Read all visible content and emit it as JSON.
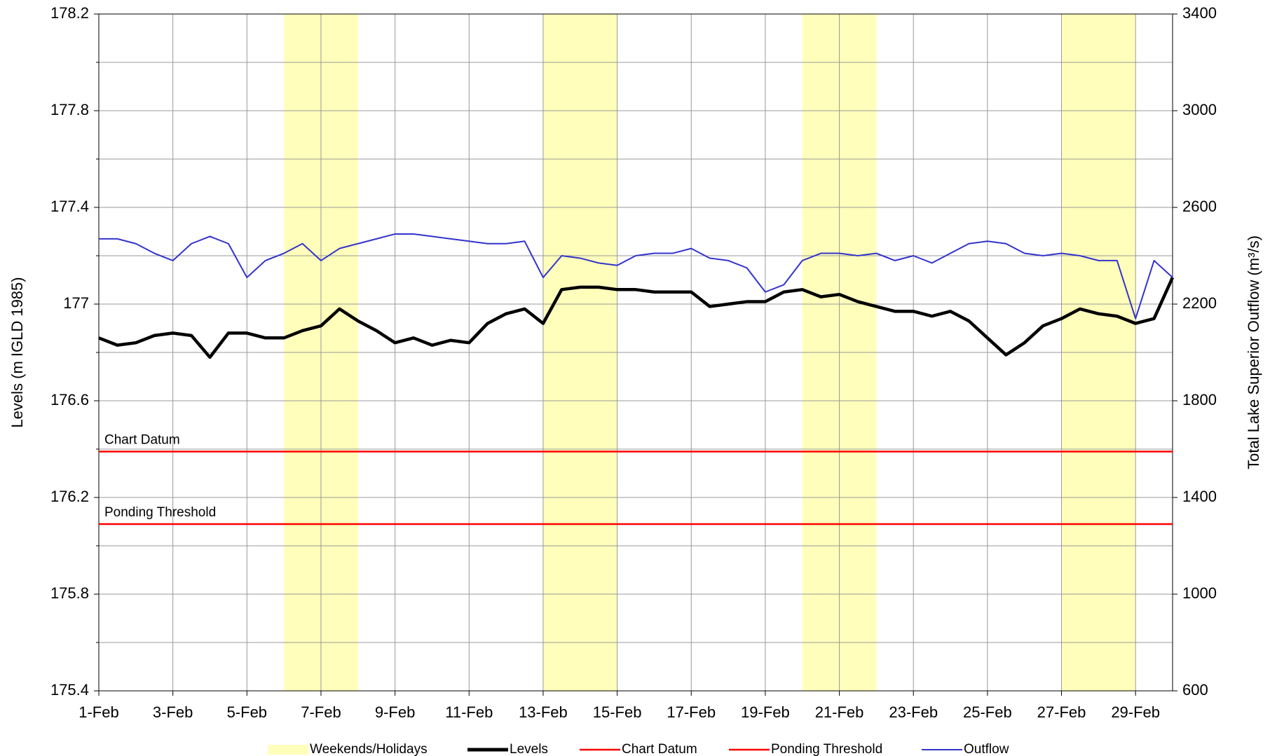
{
  "chart_data": {
    "type": "line",
    "x_unit_note_free": null,
    "y_label": "Levels (m IGLD 1985)",
    "y2_label": "Total Lake Superior Outflow (m³/s)",
    "xlim": [
      1,
      30
    ],
    "xticks": [
      {
        "value": 1,
        "label": "1-Feb"
      },
      {
        "value": 3,
        "label": "3-Feb"
      },
      {
        "value": 5,
        "label": "5-Feb"
      },
      {
        "value": 7,
        "label": "7-Feb"
      },
      {
        "value": 9,
        "label": "9-Feb"
      },
      {
        "value": 11,
        "label": "11-Feb"
      },
      {
        "value": 13,
        "label": "13-Feb"
      },
      {
        "value": 15,
        "label": "15-Feb"
      },
      {
        "value": 17,
        "label": "17-Feb"
      },
      {
        "value": 19,
        "label": "19-Feb"
      },
      {
        "value": 21,
        "label": "21-Feb"
      },
      {
        "value": 23,
        "label": "23-Feb"
      },
      {
        "value": 25,
        "label": "25-Feb"
      },
      {
        "value": 27,
        "label": "27-Feb"
      },
      {
        "value": 29,
        "label": "29-Feb"
      }
    ],
    "ylim": [
      175.4,
      178.2
    ],
    "yticks": [
      175.4,
      175.8,
      176.2,
      176.6,
      177.0,
      177.4,
      177.8,
      178.2
    ],
    "yminorticks": [
      175.6,
      176.0,
      176.4,
      176.8,
      177.2,
      177.6,
      178.0
    ],
    "y2lim": [
      600,
      3400
    ],
    "y2ticks": [
      600,
      1000,
      1400,
      1800,
      2200,
      2600,
      3000,
      3400
    ],
    "grid": true,
    "legend": "bottom",
    "shaded": {
      "name": "Weekends/Holidays",
      "color": "#ffffbb",
      "ranges": [
        [
          6,
          8
        ],
        [
          13,
          15
        ],
        [
          20,
          22
        ],
        [
          27,
          29
        ]
      ]
    },
    "reference_lines": [
      {
        "name": "Chart Datum",
        "value": 176.39,
        "color": "#ff0000"
      },
      {
        "name": "Ponding Threshold",
        "value": 176.09,
        "color": "#ff0000"
      }
    ],
    "x": [
      1,
      1.5,
      2,
      2.5,
      3,
      3.5,
      4,
      4.5,
      5,
      5.5,
      6,
      6.5,
      7,
      7.5,
      8,
      8.5,
      9,
      9.5,
      10,
      10.5,
      11,
      11.5,
      12,
      12.5,
      13,
      13.5,
      14,
      14.5,
      15,
      15.5,
      16,
      16.5,
      17,
      17.5,
      18,
      18.5,
      19,
      19.5,
      20,
      20.5,
      21,
      21.5,
      22,
      22.5,
      23,
      23.5,
      24,
      24.5,
      25,
      25.5,
      26,
      26.5,
      27,
      27.5,
      28,
      28.5,
      29,
      29.5,
      30
    ],
    "series": [
      {
        "name": "Levels",
        "color": "#000000",
        "values": [
          176.86,
          176.83,
          176.84,
          176.87,
          176.88,
          176.87,
          176.78,
          176.88,
          176.88,
          176.86,
          176.86,
          176.89,
          176.91,
          176.98,
          176.93,
          176.89,
          176.84,
          176.86,
          176.83,
          176.85,
          176.84,
          176.92,
          176.96,
          176.98,
          176.92,
          177.06,
          177.07,
          177.07,
          177.06,
          177.06,
          177.05,
          177.05,
          177.05,
          176.99,
          177.0,
          177.01,
          177.01,
          177.05,
          177.06,
          177.03,
          177.04,
          177.01,
          176.99,
          176.97,
          176.97,
          176.95,
          176.97,
          176.93,
          176.86,
          176.79,
          176.84,
          176.91,
          176.94,
          176.98,
          176.96,
          176.95,
          176.92,
          176.94,
          177.11
        ]
      },
      {
        "name": "Outflow",
        "color": "#3333cc",
        "axis": "y2",
        "values": [
          2470,
          2470,
          2450,
          2410,
          2380,
          2450,
          2480,
          2450,
          2310,
          2380,
          2410,
          2450,
          2380,
          2430,
          2450,
          2470,
          2490,
          2490,
          2480,
          2470,
          2460,
          2450,
          2450,
          2460,
          2310,
          2400,
          2390,
          2370,
          2360,
          2400,
          2410,
          2410,
          2430,
          2390,
          2380,
          2350,
          2250,
          2280,
          2380,
          2410,
          2410,
          2400,
          2410,
          2380,
          2400,
          2370,
          2410,
          2450,
          2460,
          2450,
          2410,
          2400,
          2410,
          2400,
          2380,
          2380,
          2140,
          2380,
          2310
        ]
      }
    ]
  }
}
